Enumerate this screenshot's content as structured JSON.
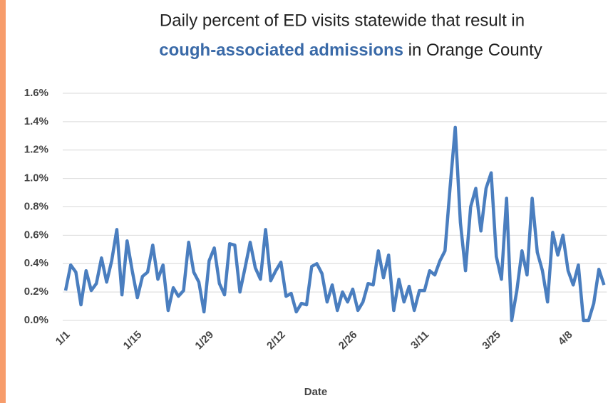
{
  "chart_data": {
    "type": "line",
    "title": "Daily percent of ED visits statewide that result in",
    "title_highlight": "cough-associated admissions",
    "title_suffix": "in Orange County",
    "xlabel": "Date",
    "categories": [
      "1/1",
      null,
      null,
      null,
      null,
      null,
      null,
      null,
      null,
      null,
      null,
      null,
      null,
      null,
      "1/15",
      null,
      null,
      null,
      null,
      null,
      null,
      null,
      null,
      null,
      null,
      null,
      null,
      null,
      "1/29",
      null,
      null,
      null,
      null,
      null,
      null,
      null,
      null,
      null,
      null,
      null,
      null,
      null,
      "2/12",
      null,
      null,
      null,
      null,
      null,
      null,
      null,
      null,
      null,
      null,
      null,
      null,
      null,
      "2/26",
      null,
      null,
      null,
      null,
      null,
      null,
      null,
      null,
      null,
      null,
      null,
      null,
      null,
      "3/11",
      null,
      null,
      null,
      null,
      null,
      null,
      null,
      null,
      null,
      null,
      null,
      null,
      null,
      "3/25",
      null,
      null,
      null,
      null,
      null,
      null,
      null,
      null,
      null,
      null,
      null,
      null,
      null,
      "4/8",
      null,
      null,
      null,
      null,
      null,
      null,
      null
    ],
    "series": [
      {
        "name": "Orange County",
        "color": "#4a7ebf",
        "values": [
          0.21,
          0.39,
          0.34,
          0.11,
          0.35,
          0.21,
          0.26,
          0.44,
          0.27,
          0.42,
          0.64,
          0.18,
          0.56,
          0.35,
          0.16,
          0.31,
          0.34,
          0.53,
          0.29,
          0.39,
          0.07,
          0.23,
          0.17,
          0.21,
          0.55,
          0.34,
          0.27,
          0.06,
          0.42,
          0.51,
          0.26,
          0.18,
          0.54,
          0.53,
          0.2,
          0.37,
          0.55,
          0.37,
          0.29,
          0.64,
          0.28,
          0.35,
          0.41,
          0.17,
          0.19,
          0.06,
          0.12,
          0.11,
          0.38,
          0.4,
          0.33,
          0.13,
          0.25,
          0.07,
          0.2,
          0.13,
          0.22,
          0.07,
          0.13,
          0.26,
          0.25,
          0.49,
          0.3,
          0.46,
          0.07,
          0.29,
          0.13,
          0.24,
          0.07,
          0.21,
          0.21,
          0.35,
          0.32,
          0.42,
          0.49,
          0.94,
          1.36,
          0.69,
          0.35,
          0.8,
          0.93,
          0.63,
          0.93,
          1.04,
          0.45,
          0.29,
          0.86,
          0.0,
          0.21,
          0.49,
          0.32,
          0.86,
          0.48,
          0.35,
          0.13,
          0.62,
          0.46,
          0.6,
          0.35,
          0.25,
          0.39,
          0.0,
          0.0,
          0.12,
          0.36,
          0.25
        ]
      }
    ],
    "ylim": [
      0,
      1.6
    ],
    "yticks": [
      {
        "value": 0,
        "label": "0.0%"
      },
      {
        "value": 0.2,
        "label": "0.2%"
      },
      {
        "value": 0.4,
        "label": "0.4%"
      },
      {
        "value": 0.6,
        "label": "0.6%"
      },
      {
        "value": 0.8,
        "label": "0.8%"
      },
      {
        "value": 1.0,
        "label": "1.0%"
      },
      {
        "value": 1.2,
        "label": "1.2%"
      },
      {
        "value": 1.4,
        "label": "1.4%"
      },
      {
        "value": 1.6,
        "label": "1.6%"
      }
    ],
    "grid": true
  }
}
